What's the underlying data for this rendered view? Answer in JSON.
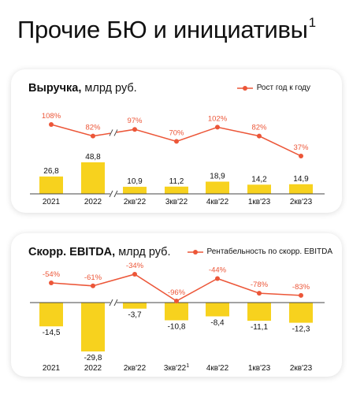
{
  "page": {
    "title": "Прочие БЮ и инициативы",
    "title_footnote": "1"
  },
  "colors": {
    "bar": "#f7d21e",
    "line": "#ec5638",
    "axis": "#444444",
    "text": "#111111"
  },
  "chart_data": [
    {
      "type": "bar",
      "title_bold": "Выручка,",
      "title_rest": " млрд руб.",
      "categories": [
        "2021",
        "2022",
        "2кв'22",
        "3кв'22",
        "4кв'22",
        "1кв'23",
        "2кв'23"
      ],
      "series": [
        {
          "values": [
            26.8,
            48.8,
            10.9,
            11.2,
            18.9,
            14.2,
            14.9
          ],
          "labels": [
            "26,8",
            "48,8",
            "10,9",
            "11,2",
            "18,9",
            "14,2",
            "14,9"
          ]
        }
      ],
      "line_series": {
        "name": "Рост год к году",
        "values": [
          108,
          82,
          97,
          70,
          102,
          82,
          37
        ],
        "labels": [
          "108%",
          "82%",
          "97%",
          "70%",
          "102%",
          "82%",
          "37%"
        ]
      },
      "axis_break": true
    },
    {
      "type": "bar",
      "title_bold": "Скорр. EBITDA,",
      "title_rest": " млрд руб.",
      "categories": [
        "2021",
        "2022",
        "2кв'22",
        "3кв'22",
        "4кв'22",
        "1кв'23",
        "2кв'23"
      ],
      "category_footnotes": [
        "",
        "",
        "",
        "1",
        "",
        "",
        ""
      ],
      "series": [
        {
          "values": [
            -14.5,
            -29.8,
            -3.7,
            -10.8,
            -8.4,
            -11.1,
            -12.3
          ],
          "labels": [
            "-14,5",
            "-29,8",
            "-3,7",
            "-10,8",
            "-8,4",
            "-11,1",
            "-12,3"
          ]
        }
      ],
      "line_series": {
        "name": "Рентабельность по скорр. EBITDA",
        "values": [
          -54,
          -61,
          -34,
          -96,
          -44,
          -78,
          -83
        ],
        "labels": [
          "-54%",
          "-61%",
          "-34%",
          "-96%",
          "-44%",
          "-78%",
          "-83%"
        ]
      },
      "axis_break": true
    }
  ]
}
